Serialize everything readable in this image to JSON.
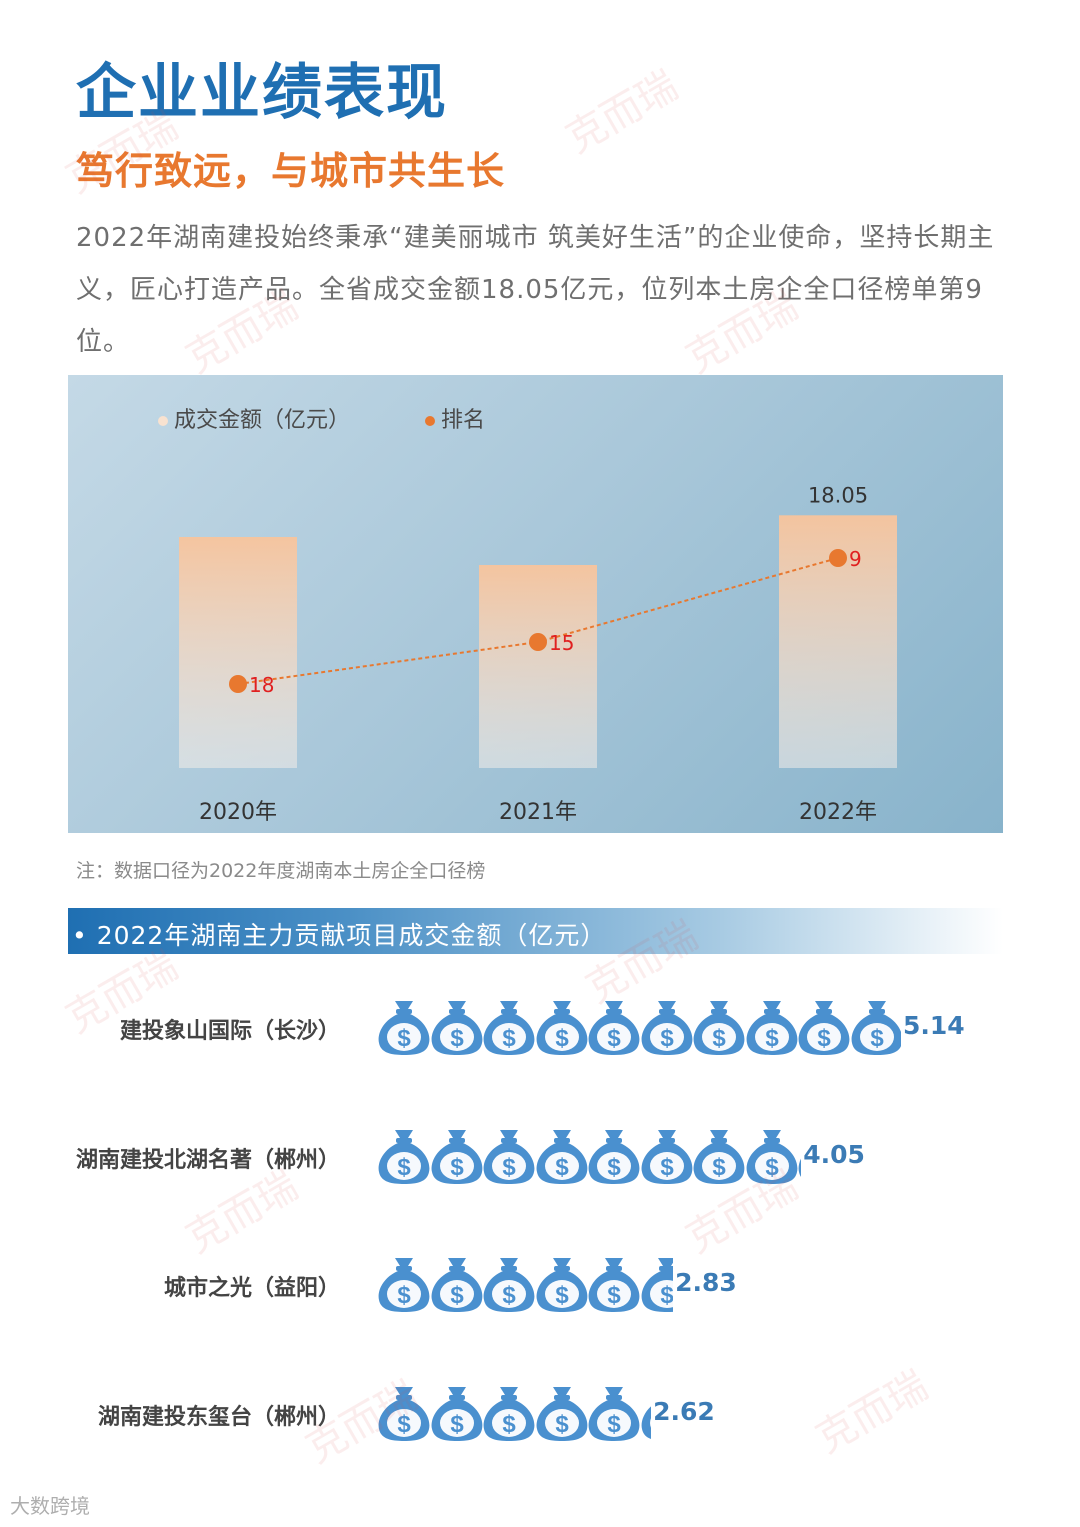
{
  "page": {
    "title": "企业业绩表现",
    "subtitle": "笃行致远，与城市共生长",
    "intro": "2022年湖南建投始终秉承“建美丽城市 筑美好生活”的企业使命，坚持长期主义，匠心打造产品。全省成交金额18.05亿元，位列本土房企全口径榜单第9位。",
    "note": "注：数据口径为2022年度湖南本土房企全口径榜",
    "watermark": "克而瑞",
    "brand": "大数跨境"
  },
  "colors": {
    "title": "#1f6fb2",
    "subtitle": "#e8782f",
    "bar_top": "#f8c49c",
    "rank_point": "#e8782f",
    "rank_label": "#e02020",
    "bag": "#4a90cf",
    "value_text": "#3b7bb5"
  },
  "chart_data": [
    {
      "type": "bar",
      "categories": [
        "2020年",
        "2021年",
        "2022年"
      ],
      "series": [
        {
          "name": "成交金额（亿元）",
          "values": [
            16.5,
            14.5,
            18.05
          ],
          "shown_labels": [
            "",
            "",
            "18.05"
          ]
        },
        {
          "name": "排名",
          "type": "line",
          "values": [
            18,
            15,
            9
          ]
        }
      ],
      "ylim": [
        0,
        24
      ],
      "rank_ylim": [
        24,
        0
      ],
      "legend": "top-left",
      "grid": false
    },
    {
      "type": "pictograph",
      "title": "2022年湖南主力贡献项目成交金额（亿元）",
      "icon": "money-bag-icon",
      "unit_per_icon": 0.5,
      "categories": [
        "建投象山国际（长沙）",
        "湖南建投北湖名著（郴州）",
        "城市之光（益阳）",
        "湖南建投东玺台（郴州）"
      ],
      "values": [
        5.14,
        4.05,
        2.83,
        2.62
      ],
      "value_labels": [
        "5.14",
        "4.05",
        "2.83",
        "2.62"
      ]
    }
  ]
}
